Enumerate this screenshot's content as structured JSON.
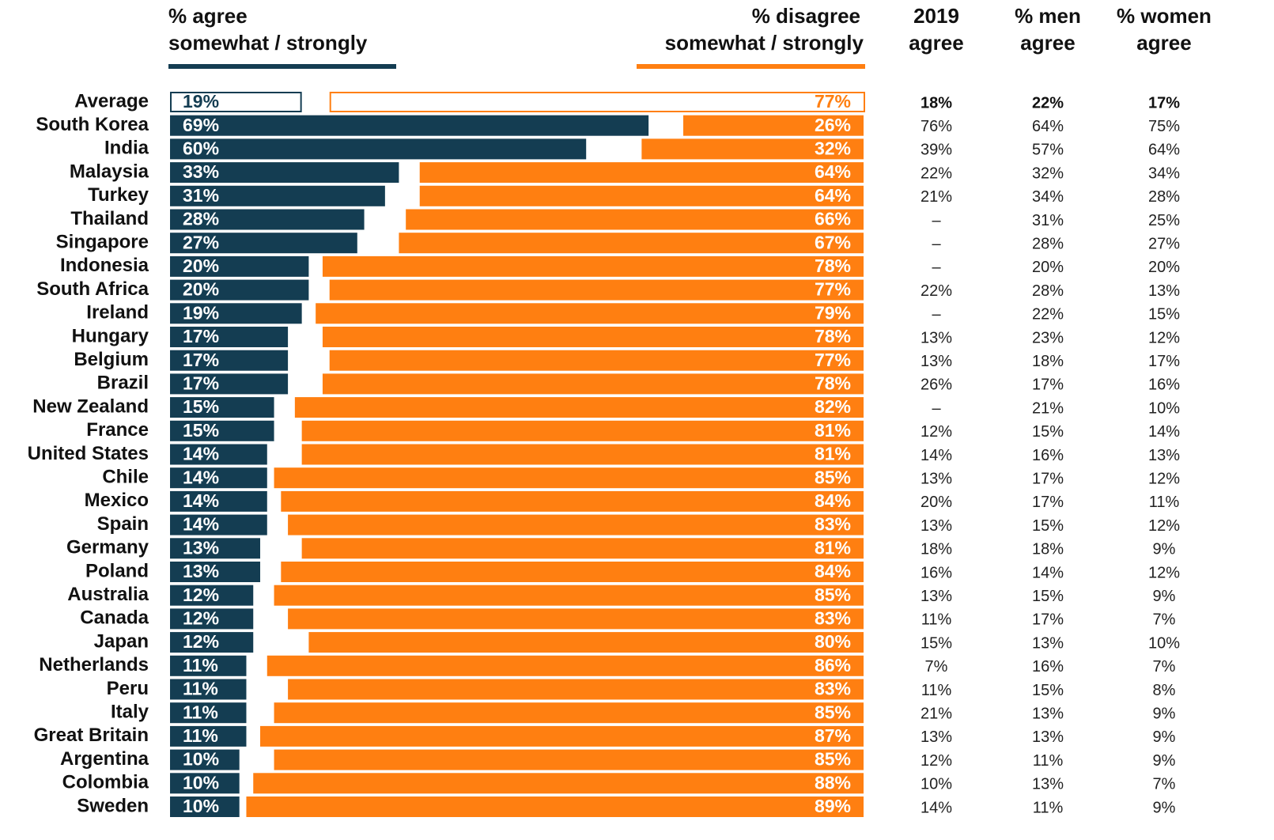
{
  "chart_data": {
    "type": "bar",
    "categories": [
      "Average",
      "South Korea",
      "India",
      "Malaysia",
      "Turkey",
      "Thailand",
      "Singapore",
      "Indonesia",
      "South Africa",
      "Ireland",
      "Hungary",
      "Belgium",
      "Brazil",
      "New Zealand",
      "France",
      "United States",
      "Chile",
      "Mexico",
      "Spain",
      "Germany",
      "Poland",
      "Australia",
      "Canada",
      "Japan",
      "Netherlands",
      "Peru",
      "Italy",
      "Great Britain",
      "Argentina",
      "Colombia",
      "Sweden"
    ],
    "xlim": [
      0,
      100
    ],
    "series": [
      {
        "name": [
          "% agree",
          "somewhat / strongly"
        ],
        "color": "#143d52",
        "values": [
          19,
          69,
          60,
          33,
          31,
          28,
          27,
          20,
          20,
          19,
          17,
          17,
          17,
          15,
          15,
          14,
          14,
          14,
          14,
          13,
          13,
          12,
          12,
          12,
          11,
          11,
          11,
          11,
          10,
          10,
          10
        ],
        "value_labels": [
          "19%",
          "69%",
          "60%",
          "33%",
          "31%",
          "28%",
          "27%",
          "20%",
          "20%",
          "19%",
          "17%",
          "17%",
          "17%",
          "15%",
          "15%",
          "14%",
          "14%",
          "14%",
          "14%",
          "13%",
          "13%",
          "12%",
          "12%",
          "12%",
          "11%",
          "11%",
          "11%",
          "11%",
          "10%",
          "10%",
          "10%"
        ]
      },
      {
        "name": [
          "% disagree",
          "somewhat / strongly"
        ],
        "color": "#ff7f11",
        "values": [
          77,
          26,
          32,
          64,
          64,
          66,
          67,
          78,
          77,
          79,
          78,
          77,
          78,
          82,
          81,
          81,
          85,
          84,
          83,
          81,
          84,
          85,
          83,
          80,
          86,
          83,
          85,
          87,
          85,
          88,
          89
        ],
        "value_labels": [
          "77%",
          "26%",
          "32%",
          "64%",
          "64%",
          "66%",
          "67%",
          "78%",
          "77%",
          "79%",
          "78%",
          "77%",
          "78%",
          "82%",
          "81%",
          "81%",
          "85%",
          "84%",
          "83%",
          "81%",
          "84%",
          "85%",
          "83%",
          "80%",
          "86%",
          "83%",
          "85%",
          "87%",
          "85%",
          "88%",
          "89%"
        ]
      }
    ],
    "table": {
      "columns": [
        {
          "name": [
            "2019",
            "agree"
          ],
          "cells": [
            "18%",
            "76%",
            "39%",
            "22%",
            "21%",
            "–",
            "–",
            "–",
            "22%",
            "–",
            "13%",
            "13%",
            "26%",
            "–",
            "12%",
            "14%",
            "13%",
            "20%",
            "13%",
            "18%",
            "16%",
            "13%",
            "11%",
            "15%",
            "7%",
            "11%",
            "21%",
            "13%",
            "12%",
            "10%",
            "14%"
          ]
        },
        {
          "name": [
            "% men",
            "agree"
          ],
          "cells": [
            "22%",
            "64%",
            "57%",
            "32%",
            "34%",
            "31%",
            "28%",
            "20%",
            "28%",
            "22%",
            "23%",
            "18%",
            "17%",
            "21%",
            "15%",
            "16%",
            "17%",
            "17%",
            "15%",
            "18%",
            "14%",
            "15%",
            "17%",
            "13%",
            "16%",
            "15%",
            "13%",
            "13%",
            "11%",
            "13%",
            "11%"
          ]
        },
        {
          "name": [
            "% women",
            "agree"
          ],
          "cells": [
            "17%",
            "75%",
            "64%",
            "34%",
            "28%",
            "25%",
            "27%",
            "20%",
            "13%",
            "15%",
            "12%",
            "17%",
            "16%",
            "10%",
            "14%",
            "13%",
            "12%",
            "11%",
            "12%",
            "9%",
            "12%",
            "9%",
            "7%",
            "10%",
            "7%",
            "8%",
            "9%",
            "9%",
            "9%",
            "7%",
            "9%"
          ]
        }
      ]
    }
  }
}
